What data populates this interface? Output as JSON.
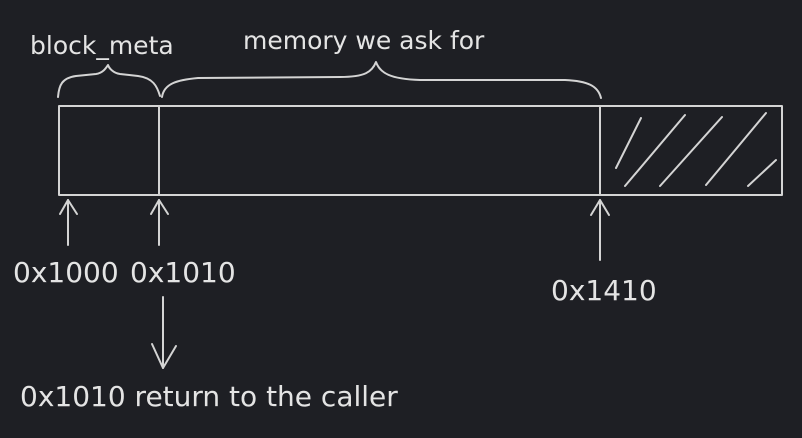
{
  "colors": {
    "background": "#1e1f24",
    "stroke": "#d4d4d4",
    "text": "#e4e4e4"
  },
  "labels": {
    "block_meta": "block_meta",
    "memory": "memory we ask for",
    "addr_start": "0x1000",
    "addr_user": "0x1010",
    "addr_end": "0x1410",
    "return_text": "0x1010 return to the caller"
  },
  "icons": {
    "up_arrow": "up-arrow-icon",
    "down_arrow": "down-arrow-icon",
    "brace": "curly-brace-icon",
    "hatch": "hatch-pattern"
  }
}
